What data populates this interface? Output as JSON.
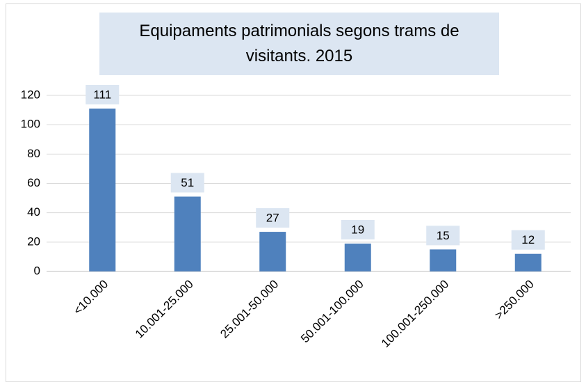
{
  "chart_data": {
    "type": "bar",
    "title": "Equipaments patrimonials segons trams de visitants. 2015",
    "categories": [
      "<10.000",
      "10.001-25.000",
      "25.001-50.000",
      "50.001-100.000",
      "100.001-250.000",
      ">250.000"
    ],
    "values": [
      111,
      51,
      27,
      19,
      15,
      12
    ],
    "color": "#4f81bd",
    "ylim": [
      0,
      120
    ],
    "yticks": [
      0,
      20,
      40,
      60,
      80,
      100,
      120
    ],
    "grid": true
  }
}
